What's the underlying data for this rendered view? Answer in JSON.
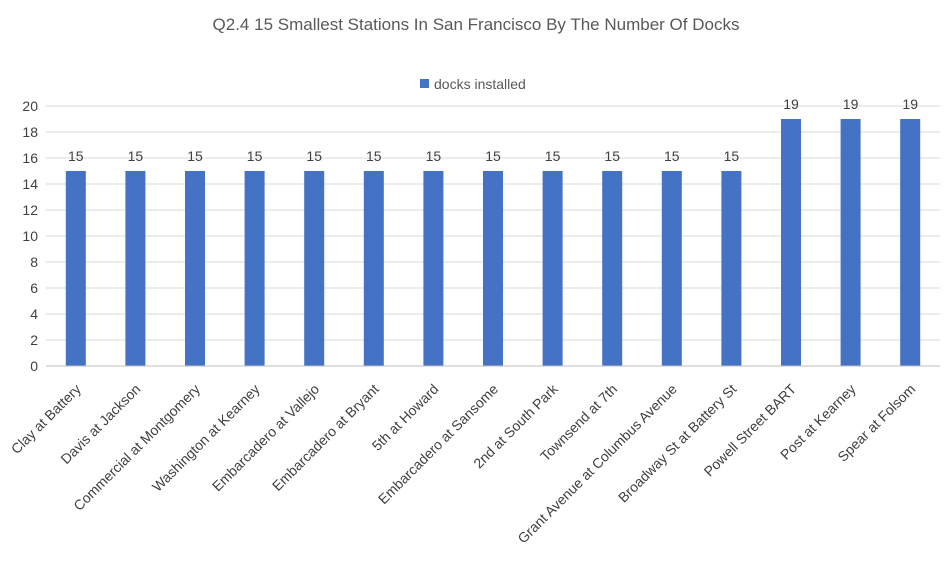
{
  "chart_data": {
    "type": "bar",
    "title": "Q2.4 15 Smallest Stations In San Francisco By The Number Of Docks",
    "xlabel": "",
    "ylabel": "",
    "ylim": [
      0,
      20
    ],
    "yticks": [
      0,
      2,
      4,
      6,
      8,
      10,
      12,
      14,
      16,
      18,
      20
    ],
    "grid": true,
    "legend_position": "top",
    "categories": [
      "Clay at Battery",
      "Davis at Jackson",
      "Commercial at Montgomery",
      "Washington at Kearney",
      "Embarcadero at Vallejo",
      "Embarcadero at Bryant",
      "5th at Howard",
      "Embarcadero at Sansome",
      "2nd at South Park",
      "Townsend at 7th",
      "Grant Avenue at Columbus Avenue",
      "Broadway St at Battery St",
      "Powell Street BART",
      "Post at Kearney",
      "Spear at Folsom"
    ],
    "series": [
      {
        "name": "docks installed",
        "color": "#4472c4",
        "values": [
          15,
          15,
          15,
          15,
          15,
          15,
          15,
          15,
          15,
          15,
          15,
          15,
          19,
          19,
          19
        ]
      }
    ]
  }
}
